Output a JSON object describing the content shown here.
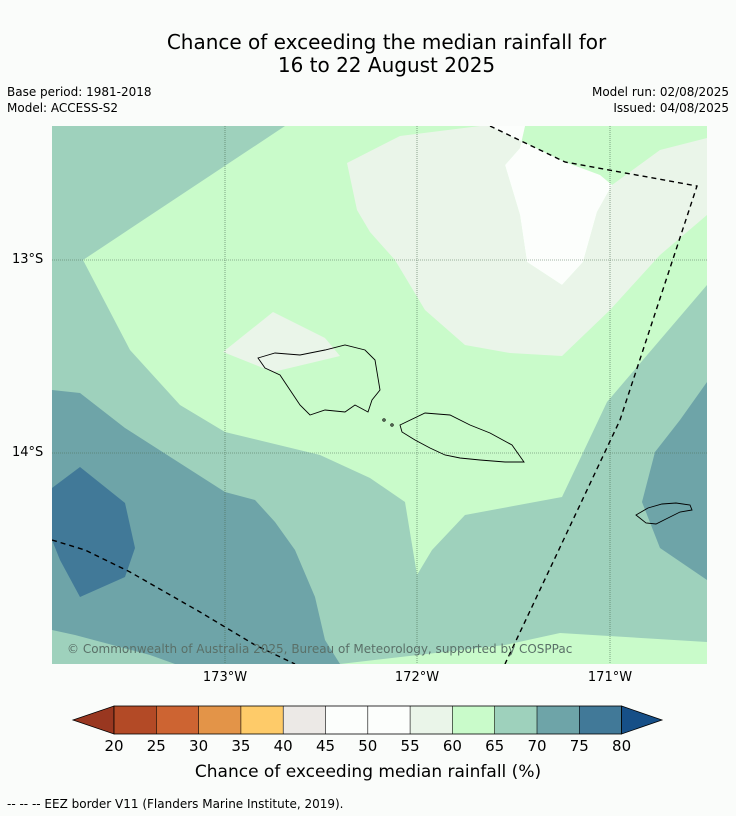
{
  "map": {
    "title_line1": "Chance of exceeding the median rainfall for",
    "title_line2": "16 to 22 August 2025",
    "base_period": "Base period: 1981-2018",
    "model": "Model: ACCESS-S2",
    "model_run": "Model run: 02/08/2025",
    "issued": "Issued: 04/08/2025",
    "lat_labels": [
      "13°S",
      "14°S"
    ],
    "lon_labels": [
      "173°W",
      "172°W",
      "171°W"
    ],
    "copyright": "© Commonwealth of Australia 2025, Bureau of Meteorology, supported by COSPPac",
    "colorbar_ticks": [
      "20",
      "25",
      "30",
      "35",
      "40",
      "45",
      "50",
      "55",
      "60",
      "65",
      "70",
      "75",
      "80"
    ],
    "colorbar_label": "Chance of exceeding median rainfall (%)",
    "footer_legend": "-- -- -- EEZ border V11 (Flanders Marine Institute, 2019).",
    "colors": {
      "below_20": "#993720",
      "20_25": "#b34a26",
      "25_30": "#cd6432",
      "30_35": "#e39448",
      "35_40": "#fecb69",
      "40_45": "#ece9e6",
      "45_50": "#fcfefc",
      "50_55": "#fcfefc",
      "55_60": "#eaf5e9",
      "60_65": "#c9fbca",
      "65_70": "#9ed1bc",
      "70_75": "#6ea4a8",
      "75_80": "#417998",
      "above_80": "#164f87"
    }
  }
}
